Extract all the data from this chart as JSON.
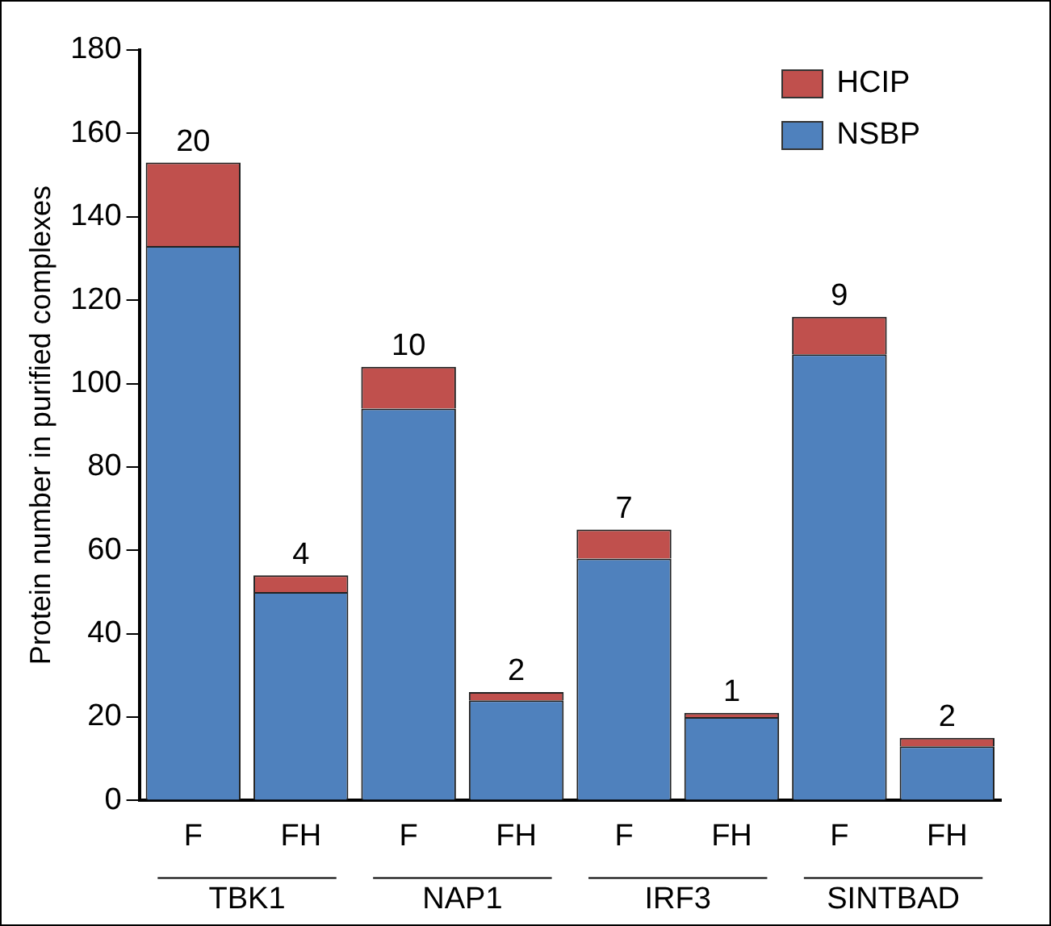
{
  "chart_data": {
    "type": "bar",
    "ylabel": "Protein number in purified complexes",
    "categories": [
      "F",
      "FH",
      "F",
      "FH",
      "F",
      "FH",
      "F",
      "FH"
    ],
    "series": [
      {
        "name": "NSBP",
        "color": "#4f81bd",
        "values": [
          133,
          50,
          94,
          24,
          58,
          20,
          107,
          13
        ]
      },
      {
        "name": "HCIP",
        "color": "#c0504d",
        "values": [
          20,
          4,
          10,
          2,
          7,
          1,
          9,
          2
        ],
        "value_labels": [
          "20",
          "4",
          "10",
          "2",
          "7",
          "1",
          "9",
          "2"
        ]
      }
    ],
    "stacked": true,
    "ylim": [
      0,
      180
    ],
    "yticks": [
      0,
      20,
      40,
      60,
      80,
      100,
      120,
      140,
      160,
      180
    ],
    "grid": false,
    "legend": "top right",
    "annotations": [
      "TBK1",
      "NAP1",
      "IRF3",
      "SINTBAD"
    ]
  }
}
